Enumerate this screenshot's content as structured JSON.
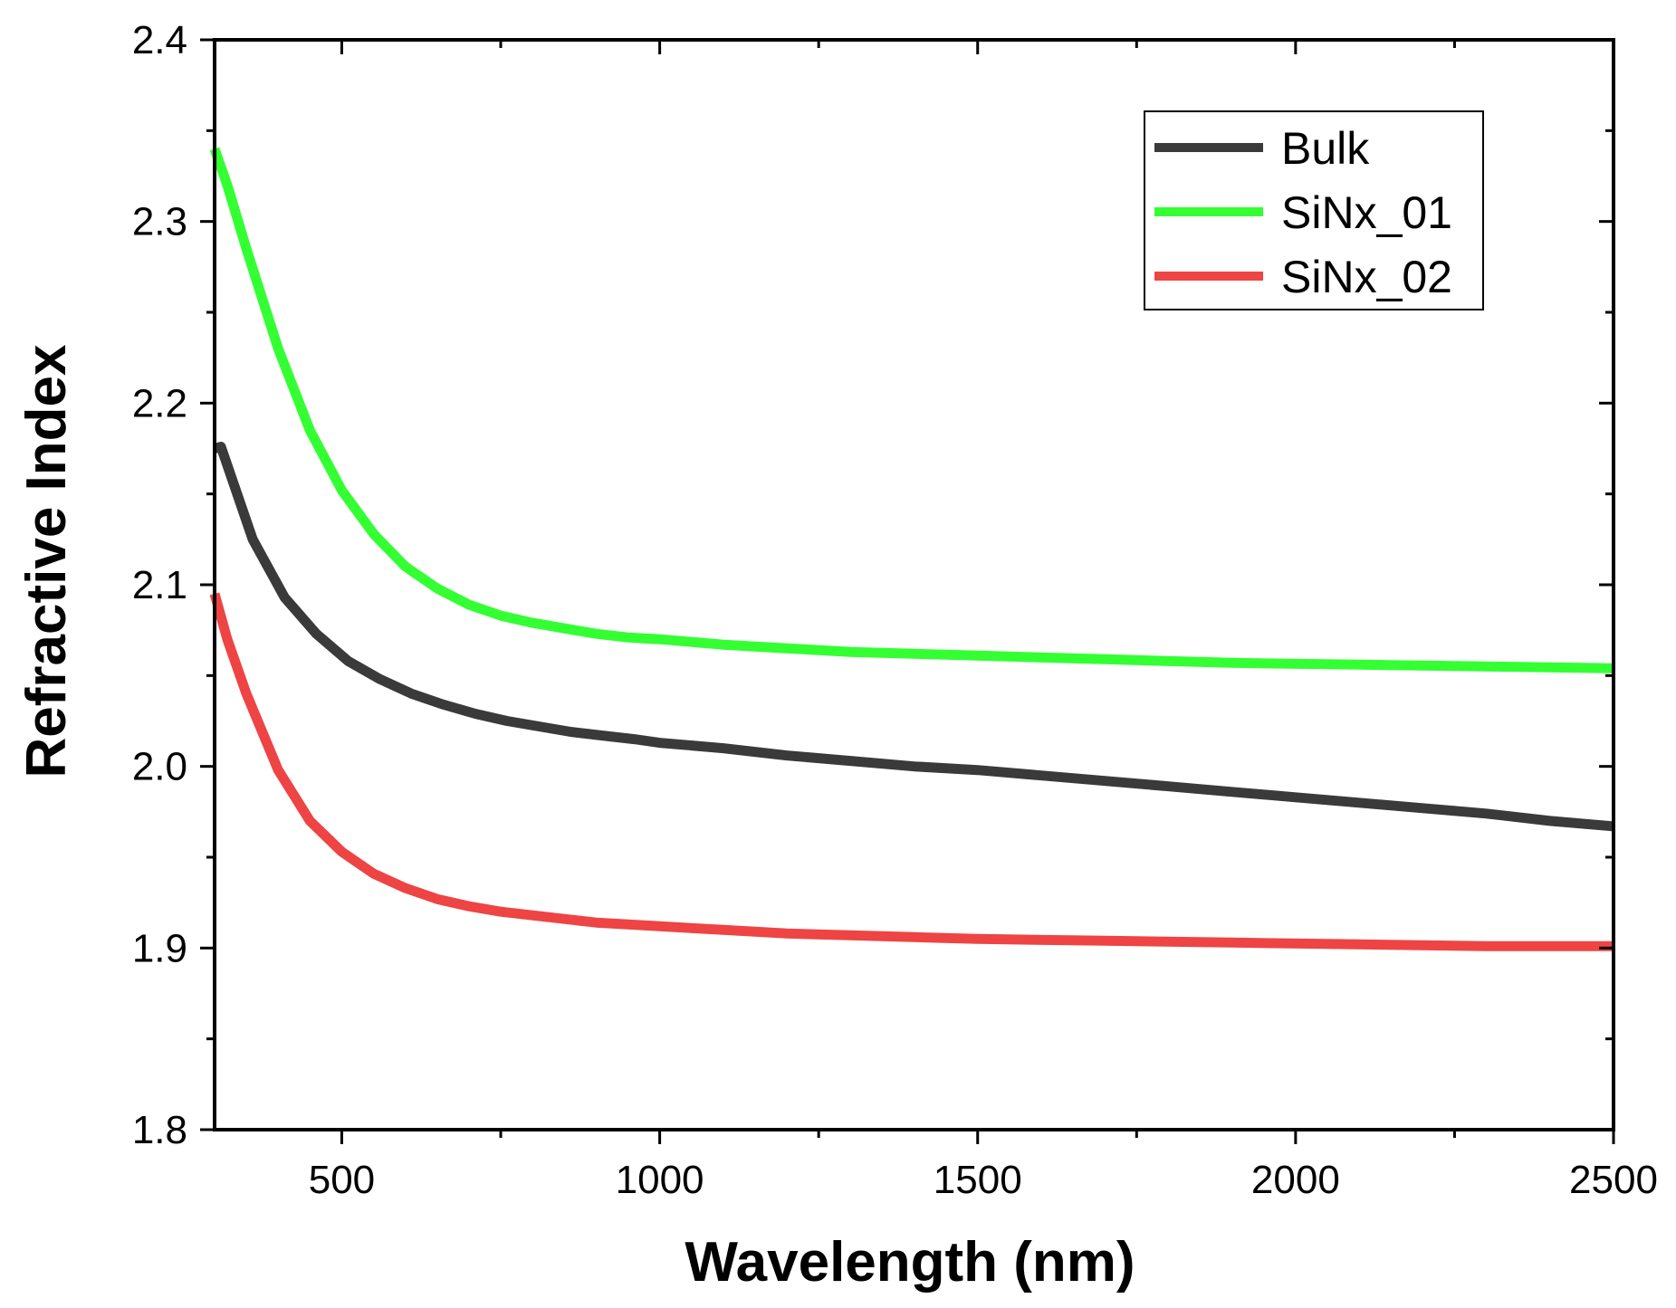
{
  "chart_data": {
    "type": "line",
    "title": "",
    "xlabel": "Wavelength (nm)",
    "ylabel": "Refractive Index",
    "xlim": [
      300,
      2500
    ],
    "ylim": [
      1.8,
      2.4
    ],
    "x_major_ticks": [
      500,
      1000,
      1500,
      2000,
      2500
    ],
    "x_minor_ticks": [
      750,
      1250,
      1750,
      2250
    ],
    "y_major_ticks": [
      1.8,
      1.9,
      2.0,
      2.1,
      2.2,
      2.3,
      2.4
    ],
    "y_minor_ticks": [
      1.85,
      1.95,
      2.05,
      2.15,
      2.25,
      2.35
    ],
    "x_tick_labels": [
      "500",
      "1000",
      "1500",
      "2000",
      "2500"
    ],
    "y_tick_labels": [
      "1.8",
      "1.9",
      "2.0",
      "2.1",
      "2.2",
      "2.3",
      "2.4"
    ],
    "grid": false,
    "legend_position": "top-right",
    "series": [
      {
        "name": "Bulk",
        "color": "#3a3a3a",
        "x": [
          300,
          310,
          360,
          410,
          460,
          510,
          560,
          610,
          660,
          710,
          760,
          810,
          860,
          910,
          960,
          1000,
          1100,
          1200,
          1300,
          1400,
          1500,
          1600,
          1700,
          1800,
          1900,
          2000,
          2100,
          2200,
          2300,
          2400,
          2500
        ],
        "y": [
          2.175,
          2.176,
          2.125,
          2.093,
          2.073,
          2.058,
          2.048,
          2.04,
          2.034,
          2.029,
          2.025,
          2.022,
          2.019,
          2.017,
          2.015,
          2.013,
          2.01,
          2.006,
          2.003,
          2.0,
          1.998,
          1.995,
          1.992,
          1.989,
          1.986,
          1.983,
          1.98,
          1.977,
          1.974,
          1.97,
          1.967
        ]
      },
      {
        "name": "SiNx_01",
        "color": "#33ff33",
        "x": [
          300,
          320,
          350,
          400,
          450,
          500,
          550,
          600,
          650,
          700,
          750,
          800,
          850,
          900,
          950,
          1000,
          1100,
          1200,
          1300,
          1400,
          1500,
          1700,
          1900,
          2100,
          2300,
          2500
        ],
        "y": [
          2.34,
          2.32,
          2.285,
          2.23,
          2.185,
          2.152,
          2.128,
          2.11,
          2.098,
          2.089,
          2.083,
          2.079,
          2.076,
          2.073,
          2.071,
          2.07,
          2.067,
          2.065,
          2.063,
          2.062,
          2.061,
          2.059,
          2.057,
          2.056,
          2.055,
          2.054
        ]
      },
      {
        "name": "SiNx_02",
        "color": "#ee4444",
        "x": [
          300,
          320,
          350,
          400,
          450,
          500,
          550,
          600,
          650,
          700,
          750,
          800,
          850,
          900,
          950,
          1000,
          1100,
          1200,
          1300,
          1400,
          1500,
          1700,
          1900,
          2100,
          2300,
          2500
        ],
        "y": [
          2.095,
          2.07,
          2.04,
          1.998,
          1.97,
          1.953,
          1.941,
          1.933,
          1.927,
          1.923,
          1.92,
          1.918,
          1.916,
          1.914,
          1.913,
          1.912,
          1.91,
          1.908,
          1.907,
          1.906,
          1.905,
          1.904,
          1.903,
          1.902,
          1.901,
          1.901
        ]
      }
    ]
  }
}
